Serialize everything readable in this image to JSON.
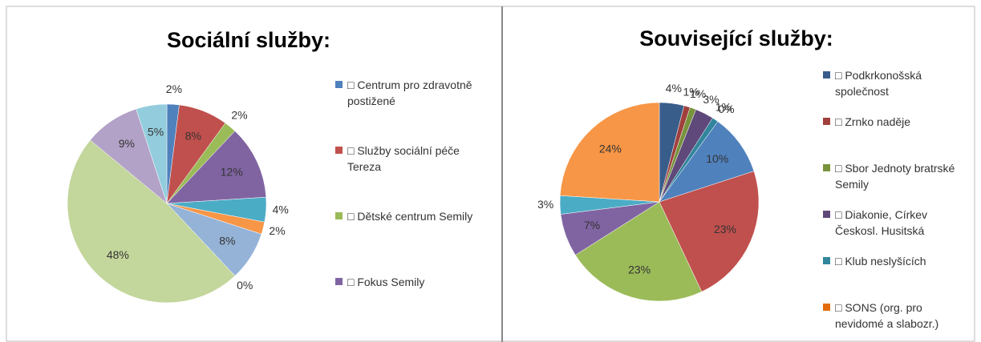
{
  "chart_data": [
    {
      "type": "pie",
      "title": "Sociální služby:",
      "categories": [
        "□ Centrum pro zdravotně postižené",
        "□ Služby sociální péče Tereza",
        "□ Dětské centrum Semily",
        "□ Fokus Semily",
        null,
        null,
        null,
        null,
        null,
        null,
        null
      ],
      "values": [
        2,
        8,
        2,
        12,
        4,
        2,
        8,
        0,
        48,
        9,
        5
      ],
      "value_labels": [
        "2%",
        "8%",
        "2%",
        "12%",
        "4%",
        "2%",
        "8%",
        "0%",
        "48%",
        "9%",
        "5%"
      ],
      "colors": [
        "#4F81BD",
        "#C0504D",
        "#9BBB59",
        "#8064A2",
        "#4BACC6",
        "#F79646",
        "#95B3D7",
        "#D99694",
        "#C3D69B",
        "#B3A2C7",
        "#93CDDD"
      ]
    },
    {
      "type": "pie",
      "title": "Související služby:",
      "categories": [
        "□ Podkrkonošská společnost",
        "□ Zrnko naděje",
        "□ Sbor Jednoty bratrské Semily",
        "□ Diakonie, Církev Českosl. Husitská",
        "□ Klub neslyšících",
        "□ SONS (org. pro nevidomé a slabozr.)",
        null,
        null,
        null,
        null,
        null,
        null
      ],
      "values": [
        4,
        1,
        1,
        3,
        1,
        0,
        10,
        23,
        23,
        7,
        3,
        24
      ],
      "value_labels": [
        "4%",
        "1%",
        "1%",
        "3%",
        "1%",
        "0%",
        "10%",
        "23%",
        "23%",
        "7%",
        "3%",
        "24%"
      ],
      "colors": [
        "#385D8A",
        "#A0403D",
        "#77933C",
        "#5F497A",
        "#31859C",
        "#E46C0A",
        "#4F81BD",
        "#C0504D",
        "#9BBB59",
        "#8064A2",
        "#4BACC6",
        "#F79646"
      ]
    }
  ]
}
